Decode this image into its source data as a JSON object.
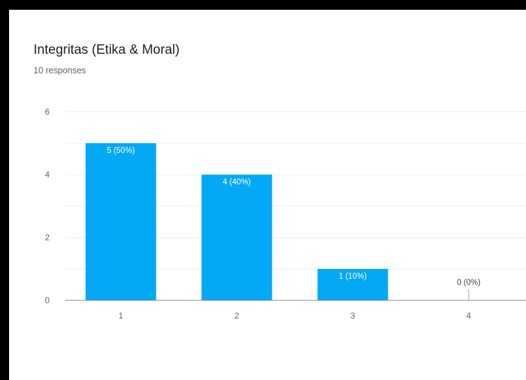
{
  "card": {
    "title": "Integritas (Etika & Moral)",
    "subtitle": "10 responses"
  },
  "colors": {
    "bar": "#03a9f4",
    "grid": "#ececec",
    "axis": "#888888",
    "label_inside": "#ffffff",
    "label_outside": "#444444"
  },
  "chart_data": {
    "type": "bar",
    "title": "Integritas (Etika & Moral)",
    "subtitle": "10 responses",
    "categories": [
      "1",
      "2",
      "3",
      "4"
    ],
    "values": [
      5,
      4,
      1,
      0
    ],
    "data_labels": [
      "5 (50%)",
      "4 (40%)",
      "1 (10%)",
      "0 (0%)"
    ],
    "y_ticks": [
      "0",
      "2",
      "4",
      "6"
    ],
    "ylim": [
      0,
      6
    ],
    "xlabel": "",
    "ylabel": "",
    "grid": true,
    "legend": "none"
  }
}
